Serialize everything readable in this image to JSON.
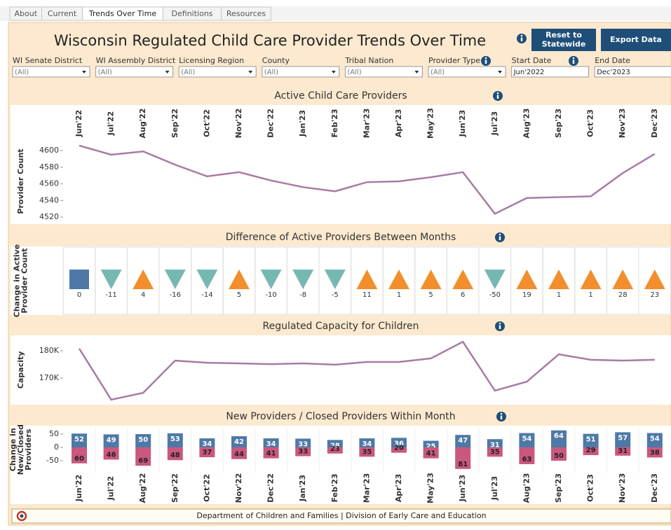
{
  "tabs": [
    "About",
    "Current",
    "Trends Over Time",
    "Definitions",
    "Resources"
  ],
  "active_tab": 2,
  "header": {
    "title": "Wisconsin Regulated Child Care Provider Trends Over Time",
    "buttons": [
      [
        "Reset to",
        "Statewide"
      ],
      [
        "Export Data"
      ]
    ]
  },
  "filters": [
    {
      "label": "WI Senate District",
      "value": "(All)",
      "dropdown": true
    },
    {
      "label": "WI Assembly District",
      "value": "(All)",
      "dropdown": true
    },
    {
      "label": "Licensing Region",
      "value": "(All)",
      "dropdown": true
    },
    {
      "label": "County",
      "value": "(All)",
      "dropdown": true
    },
    {
      "label": "Tribal Nation",
      "value": "(All)",
      "dropdown": true
    },
    {
      "label": "Provider Type",
      "value": "(All)",
      "dropdown": true
    },
    {
      "label": "Start Date",
      "value": "Jun'2022",
      "dropdown": false
    },
    {
      "label": "End Date",
      "value": "Dec'2023",
      "dropdown": false
    }
  ],
  "chart_data": [
    {
      "type": "line",
      "title": "Active Child Care Providers",
      "y_label": [
        "Provider Count"
      ],
      "categories": [
        "Jun'22",
        "Jul'22",
        "Aug'22",
        "Sep'22",
        "Oct'22",
        "Nov'22",
        "Dec'22",
        "Jan'23",
        "Feb'23",
        "Mar'23",
        "Apr'23",
        "May'23",
        "Jun'23",
        "Jul'23",
        "Aug'23",
        "Sep'23",
        "Oct'23",
        "Nov'23",
        "Dec'23"
      ],
      "values": [
        4606,
        4595,
        4599,
        4583,
        4569,
        4574,
        4564,
        4556,
        4551,
        4562,
        4563,
        4568,
        4574,
        4524,
        4543,
        4544,
        4545,
        4573,
        4596
      ],
      "color": "#a97aa3",
      "ylim": [
        4515,
        4611
      ],
      "yticks": [
        4520,
        4540,
        4560,
        4580,
        4600
      ],
      "category_axis": "top"
    },
    {
      "type": "shape",
      "title": "Difference of Active Providers Between Months",
      "y_label": [
        "Change in Active",
        "Provider Count"
      ],
      "values": [
        0,
        -11,
        4,
        -16,
        -14,
        5,
        -10,
        -8,
        -5,
        11,
        1,
        5,
        6,
        -50,
        19,
        1,
        1,
        28,
        23
      ],
      "colors": {
        "up": "#f28e2b",
        "down": "#76b7b2",
        "zero": "#4e79a7"
      }
    },
    {
      "type": "line",
      "title": "Regulated Capacity for Children",
      "y_label": [
        "Capacity"
      ],
      "values": [
        180800,
        162100,
        164600,
        176400,
        175600,
        175400,
        175100,
        175400,
        174900,
        175900,
        175900,
        177200,
        183300,
        165400,
        168700,
        178700,
        176700,
        176400,
        176700
      ],
      "color": "#a97aa3",
      "ylim": [
        161000,
        185000
      ],
      "yticks": [
        {
          "value": 170000,
          "label": "170K"
        },
        {
          "value": 180000,
          "label": "180K"
        }
      ]
    },
    {
      "type": "diverging_bar",
      "title": "New Providers / Closed Providers Within Month",
      "y_label": [
        "Change in",
        "New/Closed",
        "Providers"
      ],
      "categories": [
        "Jun'22",
        "Jul'22",
        "Aug'22",
        "Sep'22",
        "Oct'22",
        "Nov'22",
        "Dec'22",
        "Jan'23",
        "Feb'23",
        "Mar'23",
        "Apr'23",
        "May'23",
        "Jun'23",
        "Jul'23",
        "Aug'23",
        "Sep'23",
        "Oct'23",
        "Nov'23",
        "Dec'23"
      ],
      "series": [
        {
          "color": "#4e79a7",
          "values": [
            52,
            49,
            50,
            53,
            34,
            42,
            34,
            33,
            28,
            34,
            36,
            25,
            47,
            31,
            54,
            64,
            51,
            57,
            54
          ]
        },
        {
          "color": "#c9587c",
          "values": [
            -60,
            -46,
            -69,
            -48,
            -37,
            -44,
            -41,
            -33,
            -23,
            -35,
            -20,
            -41,
            -81,
            -35,
            -63,
            -50,
            -29,
            -31,
            -38
          ],
          "value_labels": [
            "60",
            "46",
            "69",
            "48",
            "37",
            "44",
            "41",
            "33",
            "23",
            "35",
            "20",
            "41",
            "81",
            "35",
            "63",
            "50",
            "29",
            "31",
            "38"
          ]
        }
      ],
      "ylim": [
        -85,
        68
      ],
      "yticks": [
        50,
        0,
        -50
      ],
      "category_axis": "bottom"
    }
  ],
  "footer": "Department of Children and Families | Division of Early Care and Education"
}
